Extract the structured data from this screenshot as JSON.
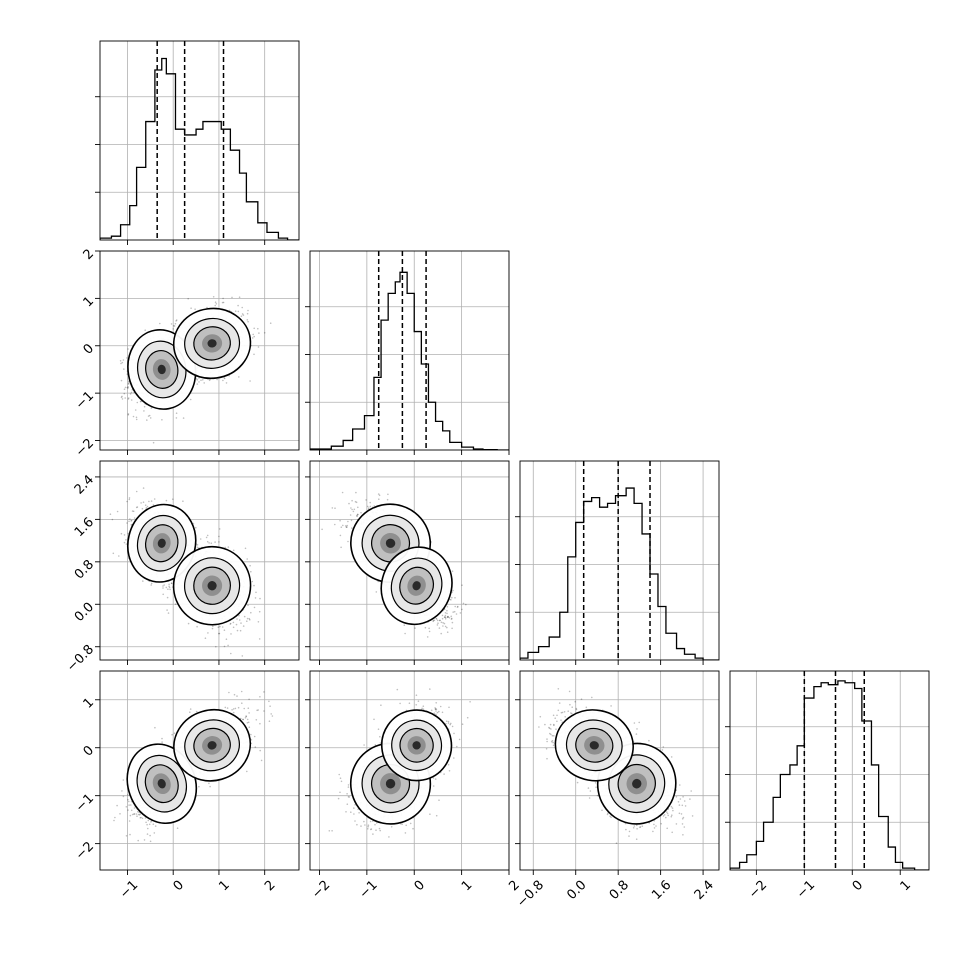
{
  "chart_data": {
    "type": "corner",
    "grid": true,
    "parameters": [
      {
        "range": [
          -1.6,
          2.75
        ],
        "ticks": [
          -1,
          0,
          1,
          2
        ],
        "tick_labels": [
          "−1",
          "0",
          "1",
          "2"
        ],
        "quantiles": [
          -0.35,
          0.25,
          1.1
        ],
        "hist_edges": [
          -1.6,
          -1.35,
          -1.15,
          -0.95,
          -0.8,
          -0.6,
          -0.4,
          -0.25,
          -0.15,
          0.05,
          0.25,
          0.5,
          0.65,
          0.8,
          1.05,
          1.25,
          1.45,
          1.6,
          1.85,
          2.05,
          2.3,
          2.5,
          2.75
        ],
        "hist_counts": [
          0.01,
          0.02,
          0.08,
          0.18,
          0.38,
          0.62,
          0.89,
          0.95,
          0.87,
          0.58,
          0.55,
          0.58,
          0.62,
          0.62,
          0.58,
          0.47,
          0.35,
          0.2,
          0.09,
          0.04,
          0.01,
          0
        ]
      },
      {
        "range": [
          -2.2,
          2.0
        ],
        "ticks": [
          -2,
          -1,
          0,
          1,
          2
        ],
        "tick_labels": [
          "−2",
          "−1",
          "0",
          "1",
          "2"
        ],
        "quantiles": [
          -0.75,
          -0.25,
          0.25
        ],
        "hist_edges": [
          -2.2,
          -1.75,
          -1.5,
          -1.3,
          -1.05,
          -0.85,
          -0.7,
          -0.55,
          -0.4,
          -0.3,
          -0.15,
          0.0,
          0.15,
          0.3,
          0.45,
          0.6,
          0.75,
          1.0,
          1.25,
          1.45,
          1.75,
          2.0
        ],
        "hist_counts": [
          0.005,
          0.02,
          0.05,
          0.11,
          0.18,
          0.38,
          0.68,
          0.82,
          0.88,
          0.93,
          0.82,
          0.62,
          0.45,
          0.25,
          0.15,
          0.1,
          0.04,
          0.015,
          0.005,
          0.002,
          0
        ]
      },
      {
        "range": [
          -1.05,
          2.7
        ],
        "ticks": [
          -0.8,
          0.0,
          0.8,
          1.6,
          2.4
        ],
        "tick_labels": [
          "−0.8",
          "0.0",
          "0.8",
          "1.6",
          "2.4"
        ],
        "quantiles": [
          0.15,
          0.8,
          1.4
        ],
        "hist_edges": [
          -1.05,
          -0.9,
          -0.7,
          -0.5,
          -0.3,
          -0.15,
          0.0,
          0.15,
          0.3,
          0.45,
          0.6,
          0.75,
          0.95,
          1.1,
          1.25,
          1.4,
          1.55,
          1.7,
          1.9,
          2.05,
          2.25,
          2.4,
          2.7
        ],
        "hist_counts": [
          0.01,
          0.04,
          0.07,
          0.12,
          0.25,
          0.54,
          0.72,
          0.83,
          0.85,
          0.8,
          0.82,
          0.86,
          0.9,
          0.82,
          0.66,
          0.45,
          0.28,
          0.14,
          0.06,
          0.03,
          0.01,
          0
        ]
      },
      {
        "range": [
          -2.55,
          1.6
        ],
        "ticks": [
          -2,
          -1,
          0,
          1
        ],
        "tick_labels": [
          "−2",
          "−1",
          "0",
          "1"
        ],
        "quantiles": [
          -1.0,
          -0.35,
          0.25
        ],
        "hist_edges": [
          -2.55,
          -2.35,
          -2.2,
          -2.0,
          -1.85,
          -1.65,
          -1.5,
          -1.3,
          -1.15,
          -1.0,
          -0.8,
          -0.65,
          -0.5,
          -0.3,
          -0.15,
          0.05,
          0.2,
          0.4,
          0.55,
          0.75,
          0.9,
          1.05,
          1.3,
          1.6
        ],
        "hist_counts": [
          0.01,
          0.04,
          0.08,
          0.15,
          0.25,
          0.38,
          0.5,
          0.55,
          0.65,
          0.9,
          0.96,
          0.98,
          0.97,
          0.99,
          0.98,
          0.95,
          0.78,
          0.55,
          0.28,
          0.12,
          0.04,
          0.01,
          0
        ]
      }
    ],
    "histogram_max": 1.0,
    "histogram_yticks": [
      0.25,
      0.5,
      0.75
    ],
    "clusters": [
      {
        "center": [
          -0.25,
          -0.5,
          1.15,
          -0.75
        ],
        "sd": [
          0.35,
          0.4,
          0.35,
          0.4
        ]
      },
      {
        "center": [
          0.85,
          0.05,
          0.35,
          0.05
        ],
        "sd": [
          0.4,
          0.35,
          0.35,
          0.35
        ]
      }
    ],
    "correlations": {
      "1,0": 0.25,
      "2,0": -0.35,
      "3,0": 0.55,
      "2,1": -0.55,
      "3,1": 0.3,
      "3,2": -0.35
    },
    "points_per_cluster": 900
  }
}
